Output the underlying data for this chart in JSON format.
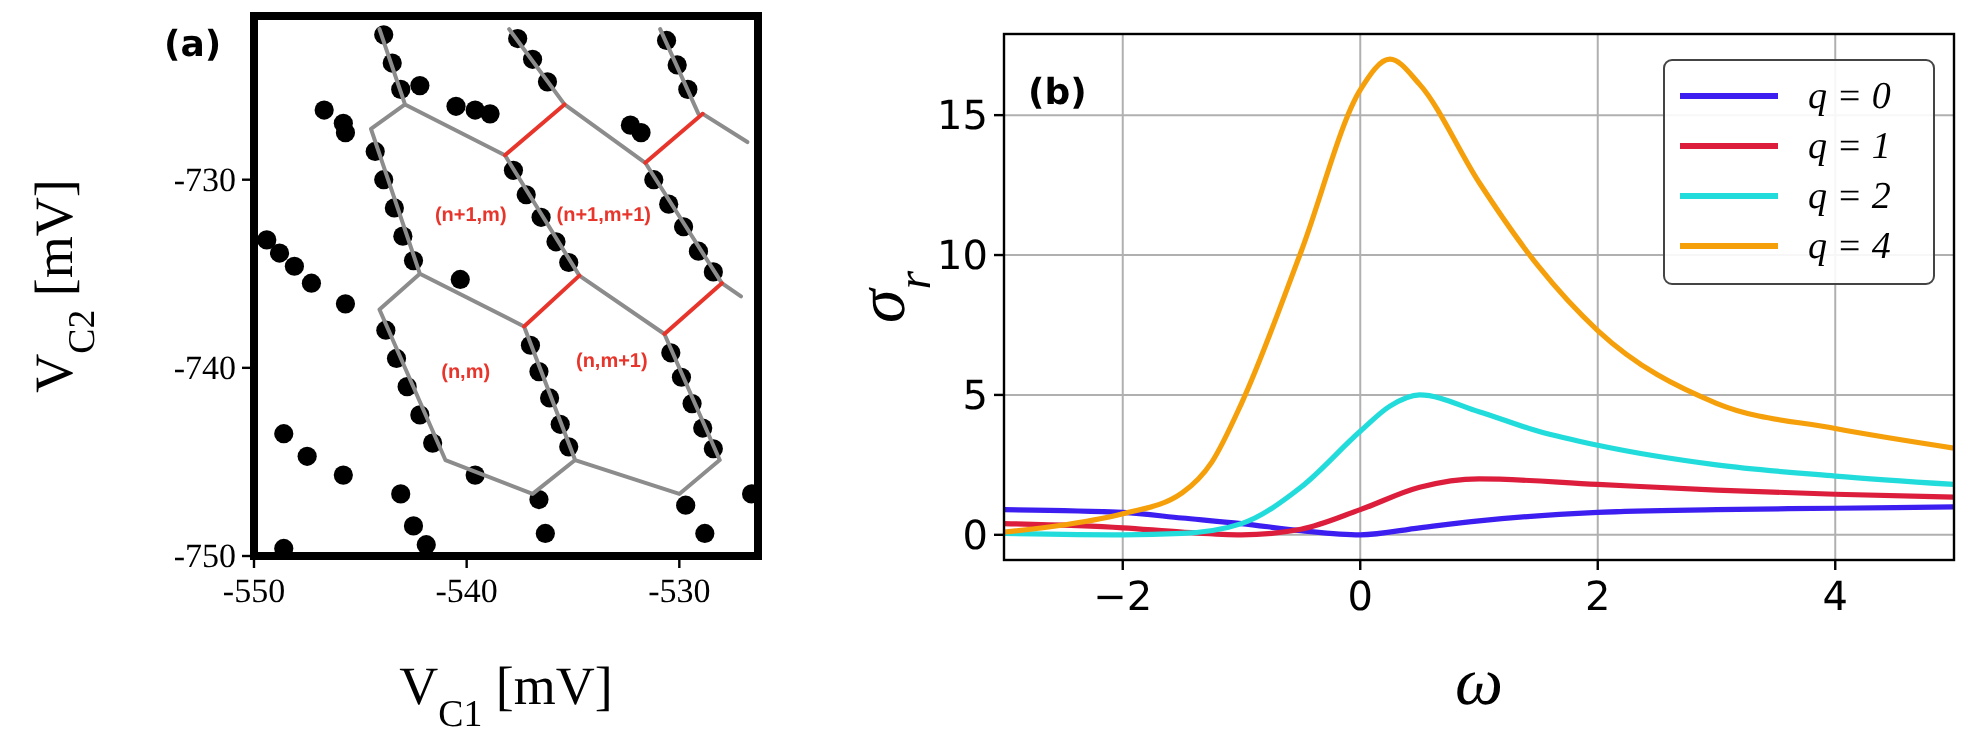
{
  "chart_data": [
    {
      "type": "scatter",
      "title": "(a)",
      "xlabel": "V$_{C1}$ [mV]",
      "ylabel": "V$_{C2}$ [mV]",
      "xlim": [
        -550,
        -526.3
      ],
      "ylim": [
        -750,
        -721.3
      ],
      "xticks": [
        -550,
        -540,
        -530
      ],
      "yticks": [
        -750,
        -740,
        -730
      ],
      "annotations": [
        "(n+1,m)",
        "(n+1,m+1)",
        "(n,m)",
        "(n,m+1)"
      ],
      "series": [
        {
          "marker": "circle",
          "color": "#000000",
          "x": [
            -546.7,
            -545.8,
            -545.7,
            -542.2,
            -540.5,
            -539.6,
            -538.9,
            -549.4,
            -548.8,
            -548.1,
            -547.3,
            -545.7,
            -548.6,
            -547.5,
            -545.8,
            -548.6,
            -543.1,
            -542.5,
            -541.9,
            -536.6,
            -536.3,
            -529.7,
            -528.8,
            -539.6,
            -540.3,
            -532.3,
            -531.8,
            -526.6,
            -543.9,
            -543.5,
            -543.1,
            -544.3,
            -543.9,
            -543.4,
            -543.0,
            -542.5,
            -543.8,
            -543.3,
            -542.8,
            -542.2,
            -541.6,
            -537.6,
            -536.9,
            -536.2,
            -537.8,
            -537.2,
            -536.5,
            -535.8,
            -535.2,
            -537.0,
            -536.6,
            -536.1,
            -535.6,
            -535.2,
            -530.6,
            -530.1,
            -529.6,
            -531.2,
            -530.5,
            -529.8,
            -529.1,
            -528.4,
            -530.4,
            -529.9,
            -529.4,
            -528.9,
            -528.4
          ],
          "values": [
            -726.3,
            -727.0,
            -727.5,
            -725.0,
            -726.1,
            -726.3,
            -726.5,
            -733.2,
            -733.9,
            -734.6,
            -735.5,
            -736.6,
            -743.5,
            -744.7,
            -745.7,
            -749.6,
            -746.7,
            -748.4,
            -749.4,
            -747.0,
            -748.8,
            -747.3,
            -748.8,
            -745.7,
            -735.3,
            -727.1,
            -727.5,
            -746.7,
            -722.3,
            -723.8,
            -725.2,
            -728.5,
            -730.0,
            -731.5,
            -733.0,
            -734.3,
            -738.0,
            -739.5,
            -741.0,
            -742.5,
            -744.0,
            -722.5,
            -723.6,
            -724.8,
            -729.5,
            -730.8,
            -732.0,
            -733.3,
            -734.4,
            -738.8,
            -740.2,
            -741.6,
            -743.0,
            -744.2,
            -722.6,
            -723.9,
            -725.2,
            -730.0,
            -731.3,
            -732.5,
            -733.8,
            -734.9,
            -739.2,
            -740.5,
            -741.9,
            -743.2,
            -744.3
          ]
        },
        {
          "type": "line",
          "color": "#8c8c8c",
          "x": [
            -544.1,
            -542.9,
            -544.5,
            -542.2,
            -544.1,
            -541.0,
            -536.9,
            -534.9,
            -530.0,
            -528.1,
            null,
            -542.9,
            -538.2,
            null,
            -535.4,
            -531.6,
            null,
            -528.9,
            -526.8,
            null,
            -542.2,
            -537.3,
            null,
            -534.7,
            -530.7,
            null,
            -528.0,
            -527.1,
            null,
            -538.0,
            -535.4,
            null,
            -538.2,
            -534.7,
            null,
            -537.3,
            -534.9,
            null,
            -530.9,
            -529.1,
            null,
            -531.6,
            -528.0,
            null,
            -530.7,
            -528.1
          ],
          "values": [
            -722.0,
            -726.0,
            -727.3,
            -735.0,
            -736.9,
            -744.9,
            -746.7,
            -744.9,
            -746.7,
            -744.9,
            null,
            -726.0,
            -728.7,
            null,
            -726.0,
            -729.1,
            null,
            -726.5,
            -728.0,
            null,
            -735.0,
            -737.8,
            null,
            -735.1,
            -738.2,
            null,
            -735.5,
            -736.2,
            null,
            -722.0,
            -726.0,
            null,
            -728.7,
            -735.1,
            null,
            -737.8,
            -744.9,
            null,
            -722.0,
            -726.5,
            null,
            -729.1,
            -735.5,
            null,
            -738.2,
            -744.9
          ]
        },
        {
          "type": "line",
          "color": "#e8352b",
          "x": [
            -538.2,
            -535.4,
            null,
            -531.6,
            -528.9,
            null,
            -537.3,
            -534.7,
            null,
            -530.7,
            -528.0
          ],
          "values": [
            -728.7,
            -726.0,
            null,
            -729.1,
            -726.5,
            null,
            -737.8,
            -735.1,
            null,
            -738.2,
            -735.5
          ]
        }
      ]
    },
    {
      "type": "line",
      "title": "(b)",
      "xlabel": "ω",
      "ylabel": "σ$_{r}$",
      "xlim": [
        -3,
        5
      ],
      "ylim": [
        -0.9,
        17.9
      ],
      "xticks": [
        {
          "value": -2,
          "label": "−2"
        },
        0,
        2,
        4
      ],
      "yticks": [
        0,
        5,
        10,
        15
      ],
      "grid": true,
      "legend": "top right",
      "series": [
        {
          "name": "q = 0",
          "color": "#3c1ef0",
          "x": [
            -3,
            -2,
            -1.5,
            -1,
            -0.5,
            0,
            0.5,
            1,
            2,
            3,
            4,
            5
          ],
          "values": [
            0.9,
            0.8,
            0.6,
            0.4,
            0.15,
            0.0,
            0.25,
            0.5,
            0.8,
            0.9,
            0.95,
            1.0
          ]
        },
        {
          "name": "q = 1",
          "color": "#dc1e3c",
          "x": [
            -3,
            -2,
            -1.5,
            -1,
            -0.5,
            0,
            0.5,
            1,
            2,
            3,
            4,
            5
          ],
          "values": [
            0.4,
            0.25,
            0.1,
            0.0,
            0.2,
            0.9,
            1.7,
            2.0,
            1.8,
            1.6,
            1.45,
            1.35
          ]
        },
        {
          "name": "q = 2",
          "color": "#22dcdc",
          "x": [
            -3,
            -2,
            -1.5,
            -1,
            -0.5,
            0,
            0.25,
            0.5,
            1,
            1.5,
            2,
            3,
            4,
            5
          ],
          "values": [
            0.05,
            0.0,
            0.05,
            0.4,
            1.7,
            3.7,
            4.6,
            5.0,
            4.4,
            3.7,
            3.2,
            2.5,
            2.1,
            1.8
          ]
        },
        {
          "name": "q = 4",
          "color": "#f5a00a",
          "x": [
            -3,
            -2.5,
            -2,
            -1.5,
            -1.25,
            -1,
            -0.5,
            0,
            0.25,
            0.5,
            1,
            1.5,
            2,
            3,
            4,
            5
          ],
          "values": [
            0.1,
            0.35,
            0.75,
            1.5,
            2.6,
            4.7,
            10.1,
            15.9,
            17.0,
            16.1,
            12.6,
            9.6,
            7.3,
            4.7,
            3.8,
            3.1
          ]
        }
      ]
    }
  ]
}
